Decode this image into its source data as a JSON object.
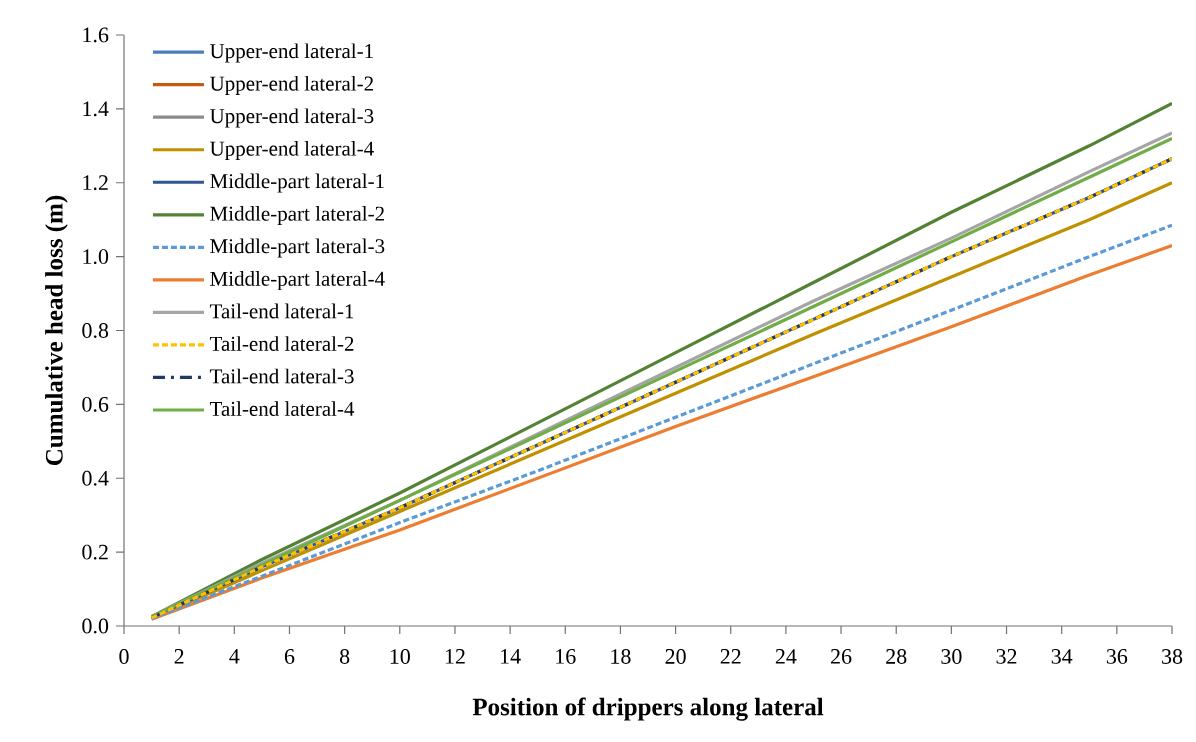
{
  "chart_data": {
    "type": "line",
    "xlabel": "Position of drippers along lateral",
    "ylabel": "Cumulative head loss (m)",
    "x": [
      1,
      5,
      10,
      15,
      20,
      25,
      30,
      35,
      38
    ],
    "series": [
      {
        "name": "Upper-end lateral-1",
        "color": "#4a7ebb",
        "line_style": "solid",
        "values": [
          null,
          null,
          null,
          null,
          null,
          null,
          null,
          null,
          null
        ]
      },
      {
        "name": "Upper-end  lateral-2",
        "color": "#c55a11",
        "line_style": "solid",
        "values": [
          null,
          null,
          null,
          null,
          null,
          null,
          null,
          null,
          null
        ]
      },
      {
        "name": "Upper-end  lateral-3",
        "color": "#8c8c8c",
        "line_style": "solid",
        "values": [
          null,
          null,
          null,
          null,
          null,
          null,
          null,
          null,
          null
        ]
      },
      {
        "name": "Upper-end  lateral-4",
        "color": "#bf9000",
        "line_style": "solid",
        "values": [
          0.02,
          0.15,
          0.31,
          0.47,
          0.63,
          0.79,
          0.945,
          1.1,
          1.2
        ]
      },
      {
        "name": "Middle-part lateral-1",
        "color": "#2f5597",
        "line_style": "solid",
        "values": [
          0.022,
          0.16,
          0.32,
          0.49,
          0.66,
          0.83,
          1.0,
          1.16,
          1.265
        ]
      },
      {
        "name": "Middle-part lateral-2",
        "color": "#548235",
        "line_style": "solid",
        "values": [
          0.025,
          0.18,
          0.36,
          0.55,
          0.74,
          0.93,
          1.12,
          1.3,
          1.415
        ]
      },
      {
        "name": "Middle-part lateral-3",
        "color": "#5b9bd5",
        "line_style": "dashed",
        "values": [
          0.02,
          0.135,
          0.28,
          0.42,
          0.565,
          0.71,
          0.855,
          1.0,
          1.085
        ]
      },
      {
        "name": "Middle-part lateral-4",
        "color": "#ed7d31",
        "line_style": "solid",
        "values": [
          0.018,
          0.13,
          0.26,
          0.4,
          0.54,
          0.675,
          0.81,
          0.95,
          1.03
        ]
      },
      {
        "name": "Tail-end lateral-1",
        "color": "#a5a5a5",
        "line_style": "solid",
        "values": [
          0.025,
          0.17,
          0.34,
          0.52,
          0.7,
          0.88,
          1.05,
          1.23,
          1.335
        ]
      },
      {
        "name": "Tail-end lateral-2",
        "color": "#ffc000",
        "line_style": "dashed",
        "values": [
          0.022,
          0.16,
          0.32,
          0.49,
          0.66,
          0.83,
          1.0,
          1.16,
          1.265
        ]
      },
      {
        "name": "Tail-end lateral-3",
        "color": "#203864",
        "line_style": "dashdot",
        "values": [
          0.022,
          0.16,
          0.32,
          0.49,
          0.66,
          0.83,
          1.0,
          1.16,
          1.265
        ]
      },
      {
        "name": "Tail-end lateral-4",
        "color": "#70ad47",
        "line_style": "solid",
        "values": [
          0.025,
          0.165,
          0.34,
          0.515,
          0.69,
          0.865,
          1.04,
          1.215,
          1.32
        ]
      }
    ],
    "xlim": [
      0,
      38
    ],
    "ylim": [
      0,
      1.6
    ],
    "xticks": [
      0,
      2,
      4,
      6,
      8,
      10,
      12,
      14,
      16,
      18,
      20,
      22,
      24,
      26,
      28,
      30,
      32,
      34,
      36,
      38
    ],
    "yticks": [
      {
        "value": 0,
        "label": "0.0"
      },
      {
        "value": 0.2,
        "label": "0.2"
      },
      {
        "value": 0.4,
        "label": "0.4"
      },
      {
        "value": 0.6,
        "label": "0.6"
      },
      {
        "value": 0.8,
        "label": "0.8"
      },
      {
        "value": 1.0,
        "label": "1.0"
      },
      {
        "value": 1.2,
        "label": "1.2"
      },
      {
        "value": 1.4,
        "label": "1.4"
      },
      {
        "value": 1.6,
        "label": "1.6"
      }
    ],
    "grid": false,
    "legend": "top left",
    "marker": "none"
  }
}
